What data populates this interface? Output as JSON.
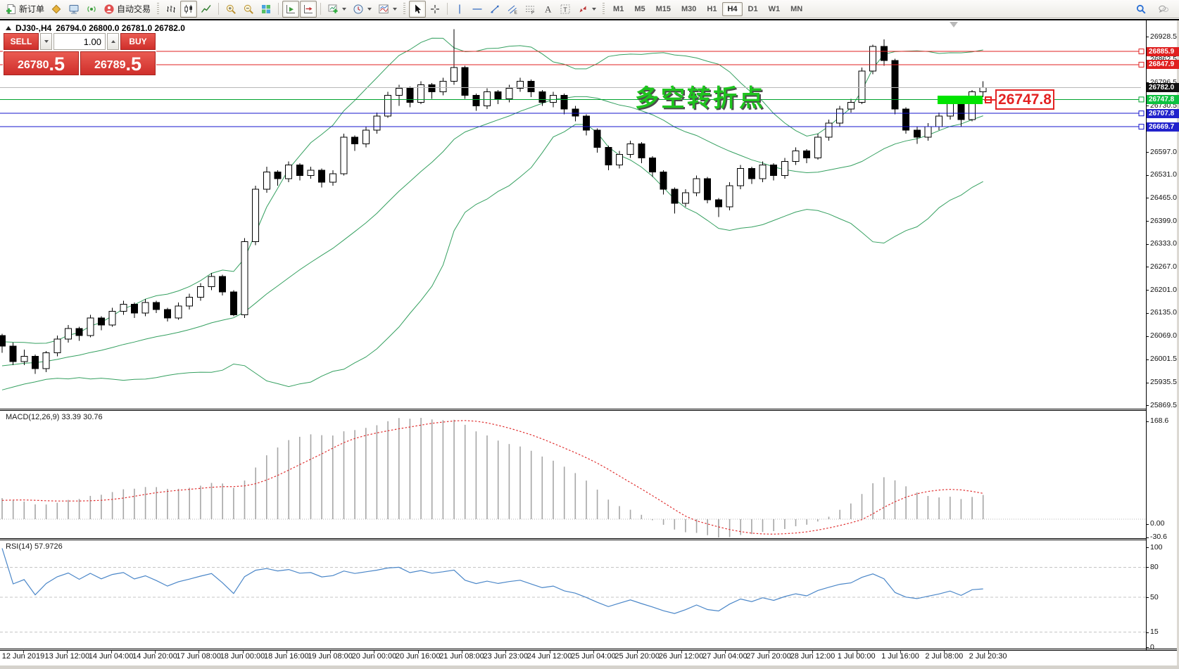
{
  "toolbar": {
    "new_order_label": "新订单",
    "algo_label": "自动交易",
    "timeframes": [
      "M1",
      "M5",
      "M15",
      "M30",
      "H1",
      "H4",
      "D1",
      "W1",
      "MN"
    ],
    "active_timeframe": "H4",
    "groups": [
      {
        "items": [
          {
            "id": "new-order",
            "icon": "neworder",
            "label_key": "new_order_label"
          },
          {
            "id": "metaeditor",
            "icon": "metaeditor"
          },
          {
            "id": "strategy-tester",
            "icon": "tester"
          },
          {
            "id": "signals",
            "icon": "signals"
          },
          {
            "id": "algo-trading",
            "icon": "algo",
            "label_key": "algo_label"
          }
        ]
      },
      {
        "grip": true,
        "items": [
          {
            "id": "bar-chart",
            "icon": "bars"
          },
          {
            "id": "candlestick-chart",
            "icon": "candles",
            "active": true
          },
          {
            "id": "line-chart",
            "icon": "linechart"
          }
        ]
      },
      {
        "items": [
          {
            "id": "zoom-in",
            "icon": "zoomin"
          },
          {
            "id": "zoom-out",
            "icon": "zoomout"
          },
          {
            "id": "tile-windows",
            "icon": "tile"
          }
        ]
      },
      {
        "items": [
          {
            "id": "auto-scroll",
            "icon": "autoscroll",
            "active": true
          },
          {
            "id": "chart-shift",
            "icon": "chartshift",
            "active": true
          }
        ]
      },
      {
        "items": [
          {
            "id": "new-chart",
            "icon": "addchart",
            "dropdown": true
          },
          {
            "id": "periods",
            "icon": "clock",
            "dropdown": true
          },
          {
            "id": "indicators",
            "icon": "indicators",
            "dropdown": true
          }
        ]
      },
      {
        "grip": true,
        "items": [
          {
            "id": "cursor",
            "icon": "cursor",
            "active": true
          },
          {
            "id": "crosshair",
            "icon": "crosshair"
          }
        ]
      },
      {
        "items": [
          {
            "id": "vertical-line",
            "icon": "vline"
          },
          {
            "id": "horizontal-line",
            "icon": "hline"
          },
          {
            "id": "trendline",
            "icon": "trend"
          },
          {
            "id": "equidistant-channel",
            "icon": "channel"
          },
          {
            "id": "fibonacci",
            "icon": "fibo"
          },
          {
            "id": "text",
            "icon": "textA"
          },
          {
            "id": "text-label",
            "icon": "textT"
          },
          {
            "id": "arrows",
            "icon": "arrows",
            "dropdown": true
          }
        ]
      }
    ],
    "right_icons": [
      {
        "id": "search",
        "icon": "search"
      },
      {
        "id": "chat",
        "icon": "chat"
      }
    ]
  },
  "window": {
    "title_symbol": "DJ30-,H4",
    "title_ohlc": "26794.0 26800.0 26781.0 26782.0"
  },
  "one_click": {
    "sell_label": "SELL",
    "buy_label": "BUY",
    "volume": "1.00",
    "sell_big": "26780",
    "sell_frac": ".5",
    "buy_big": "26789",
    "buy_frac": ".5"
  },
  "annotation": {
    "text": "多空转折点",
    "color": "#1ec41e"
  },
  "callout": {
    "label": "26747.8",
    "color": "#e32222"
  },
  "levels": [
    {
      "price": 26885.9,
      "label": "26885.9",
      "line": "#e02020",
      "badge": "#e02020",
      "marker": true
    },
    {
      "price": 26847.9,
      "label": "26847.9",
      "line": "#e02020",
      "badge": "#e02020",
      "marker": true
    },
    {
      "price": 26782.0,
      "label": "26782.0",
      "line": "#b8b8b8",
      "badge": "#111111",
      "marker": false
    },
    {
      "price": 26747.8,
      "label": "26747.8",
      "line": "#00a32e",
      "badge": "#0cc13f",
      "marker": true
    },
    {
      "price": 26707.8,
      "label": "26707.8",
      "line": "#1414cc",
      "badge": "#2222cc",
      "marker": true
    },
    {
      "price": 26669.7,
      "label": "26669.7",
      "line": "#1414cc",
      "badge": "#2222cc",
      "marker": true
    }
  ],
  "price_axis": {
    "ticks": [
      "26928.5",
      "26862.5",
      "26796.5",
      "26730.5",
      "26664.5",
      "26597.0",
      "26531.0",
      "26465.0",
      "26399.0",
      "26333.0",
      "26267.0",
      "26201.0",
      "26135.0",
      "26069.0",
      "26001.5",
      "25935.5",
      "25869.5"
    ]
  },
  "time_axis": {
    "labels": [
      "12 Jun 2019",
      "13 Jun 12:00",
      "14 Jun 04:00",
      "14 Jun 20:00",
      "17 Jun 08:00",
      "18 Jun 00:00",
      "18 Jun 16:00",
      "19 Jun 08:00",
      "20 Jun 00:00",
      "20 Jun 16:00",
      "21 Jun 08:00",
      "23 Jun 23:00",
      "24 Jun 12:00",
      "25 Jun 04:00",
      "25 Jun 20:00",
      "26 Jun 12:00",
      "27 Jun 04:00",
      "27 Jun 20:00",
      "28 Jun 12:00",
      "1 Jul 00:00",
      "1 Jul 16:00",
      "2 Jul 08:00",
      "2 Jul 20:30"
    ]
  },
  "macd": {
    "name": "MACD(12,26,9)",
    "value_main": "33.39",
    "value_signal": "30.76",
    "axis": [
      {
        "label": "168.6",
        "value": 168.6
      },
      {
        "label": "0.00",
        "value": 0
      },
      {
        "label": "-30.6",
        "value": -30.6
      }
    ],
    "histogram_color": "#a6a6a6",
    "signal_color": "#e03030"
  },
  "rsi": {
    "name": "RSI(14)",
    "value": "57.9726",
    "axis": [
      {
        "label": "100",
        "value": 100
      },
      {
        "label": "80",
        "value": 80
      },
      {
        "label": "50",
        "value": 50
      },
      {
        "label": "15",
        "value": 15
      },
      {
        "label": "0",
        "value": 0
      }
    ],
    "guide_levels": [
      80,
      50,
      15
    ],
    "line_color": "#4a86c8"
  },
  "chart_data": {
    "type": "candlestick",
    "symbol": "DJ30-",
    "timeframe": "H4",
    "last_price": 26782.0,
    "price_axis_range": [
      25869.5,
      26928.5
    ],
    "overlays": {
      "bollinger": {
        "period": 20,
        "deviation": 2,
        "color": "#35a060"
      }
    },
    "indicators": [
      {
        "type": "MACD",
        "params": [
          12,
          26,
          9
        ]
      },
      {
        "type": "RSI",
        "params": [
          14
        ]
      }
    ],
    "ohlc": [
      [
        26070,
        26075,
        26020,
        26040
      ],
      [
        26040,
        26050,
        25985,
        25995
      ],
      [
        25995,
        26030,
        25985,
        26010
      ],
      [
        26010,
        26015,
        25960,
        25975
      ],
      [
        25975,
        26025,
        25965,
        26020
      ],
      [
        26020,
        26070,
        26010,
        26060
      ],
      [
        26060,
        26100,
        26050,
        26090
      ],
      [
        26090,
        26095,
        26055,
        26070
      ],
      [
        26070,
        26130,
        26065,
        26120
      ],
      [
        26120,
        26125,
        26085,
        26100
      ],
      [
        26100,
        26150,
        26095,
        26140
      ],
      [
        26140,
        26170,
        26130,
        26160
      ],
      [
        26160,
        26165,
        26120,
        26135
      ],
      [
        26135,
        26175,
        26125,
        26165
      ],
      [
        26165,
        26170,
        26135,
        26145
      ],
      [
        26145,
        26150,
        26110,
        26120
      ],
      [
        26120,
        26165,
        26115,
        26155
      ],
      [
        26155,
        26190,
        26145,
        26180
      ],
      [
        26180,
        26220,
        26170,
        26210
      ],
      [
        26210,
        26250,
        26200,
        26240
      ],
      [
        26240,
        26245,
        26185,
        26195
      ],
      [
        26195,
        26200,
        26125,
        26130
      ],
      [
        26130,
        26350,
        26120,
        26340
      ],
      [
        26340,
        26500,
        26330,
        26490
      ],
      [
        26490,
        26555,
        26480,
        26540
      ],
      [
        26540,
        26545,
        26500,
        26520
      ],
      [
        26520,
        26570,
        26510,
        26560
      ],
      [
        26560,
        26565,
        26515,
        26530
      ],
      [
        26530,
        26555,
        26520,
        26545
      ],
      [
        26545,
        26550,
        26495,
        26510
      ],
      [
        26510,
        26545,
        26500,
        26535
      ],
      [
        26535,
        26650,
        26530,
        26640
      ],
      [
        26640,
        26645,
        26600,
        26620
      ],
      [
        26620,
        26670,
        26610,
        26660
      ],
      [
        26660,
        26710,
        26650,
        26700
      ],
      [
        26700,
        26770,
        26695,
        26760
      ],
      [
        26760,
        26790,
        26730,
        26780
      ],
      [
        26780,
        26785,
        26725,
        26740
      ],
      [
        26740,
        26800,
        26735,
        26790
      ],
      [
        26790,
        26795,
        26750,
        26770
      ],
      [
        26770,
        26810,
        26760,
        26800
      ],
      [
        26800,
        26950,
        26790,
        26840
      ],
      [
        26840,
        26845,
        26750,
        26760
      ],
      [
        26760,
        26765,
        26715,
        26730
      ],
      [
        26730,
        26780,
        26720,
        26770
      ],
      [
        26770,
        26775,
        26735,
        26750
      ],
      [
        26750,
        26790,
        26740,
        26780
      ],
      [
        26780,
        26810,
        26770,
        26800
      ],
      [
        26800,
        26805,
        26755,
        26770
      ],
      [
        26770,
        26775,
        26730,
        26740
      ],
      [
        26740,
        26770,
        26725,
        26760
      ],
      [
        26760,
        26765,
        26705,
        26720
      ],
      [
        26720,
        26730,
        26685,
        26700
      ],
      [
        26700,
        26705,
        26645,
        26660
      ],
      [
        26660,
        26665,
        26595,
        26610
      ],
      [
        26610,
        26615,
        26545,
        26560
      ],
      [
        26560,
        26600,
        26550,
        26590
      ],
      [
        26590,
        26630,
        26580,
        26620
      ],
      [
        26620,
        26625,
        26565,
        26580
      ],
      [
        26580,
        26585,
        26525,
        26540
      ],
      [
        26540,
        26545,
        26475,
        26490
      ],
      [
        26490,
        26495,
        26420,
        26450
      ],
      [
        26450,
        26490,
        26440,
        26480
      ],
      [
        26480,
        26530,
        26470,
        26520
      ],
      [
        26520,
        26525,
        26450,
        26460
      ],
      [
        26460,
        26465,
        26410,
        26440
      ],
      [
        26440,
        26510,
        26430,
        26500
      ],
      [
        26500,
        26560,
        26490,
        26550
      ],
      [
        26550,
        26555,
        26505,
        26520
      ],
      [
        26520,
        26570,
        26510,
        26560
      ],
      [
        26560,
        26565,
        26515,
        26530
      ],
      [
        26530,
        26580,
        26520,
        26570
      ],
      [
        26570,
        26610,
        26560,
        26600
      ],
      [
        26600,
        26605,
        26565,
        26580
      ],
      [
        26580,
        26650,
        26575,
        26640
      ],
      [
        26640,
        26690,
        26630,
        26680
      ],
      [
        26680,
        26730,
        26670,
        26720
      ],
      [
        26720,
        26750,
        26710,
        26740
      ],
      [
        26740,
        26840,
        26735,
        26830
      ],
      [
        26830,
        26905,
        26820,
        26900
      ],
      [
        26900,
        26920,
        26845,
        26860
      ],
      [
        26860,
        26865,
        26705,
        26720
      ],
      [
        26720,
        26725,
        26650,
        26660
      ],
      [
        26660,
        26670,
        26620,
        26640
      ],
      [
        26640,
        26680,
        26630,
        26670
      ],
      [
        26670,
        26710,
        26660,
        26700
      ],
      [
        26700,
        26750,
        26690,
        26740
      ],
      [
        26740,
        26745,
        26670,
        26690
      ],
      [
        26690,
        26775,
        26685,
        26770
      ],
      [
        26770,
        26800,
        26755,
        26782
      ]
    ]
  }
}
